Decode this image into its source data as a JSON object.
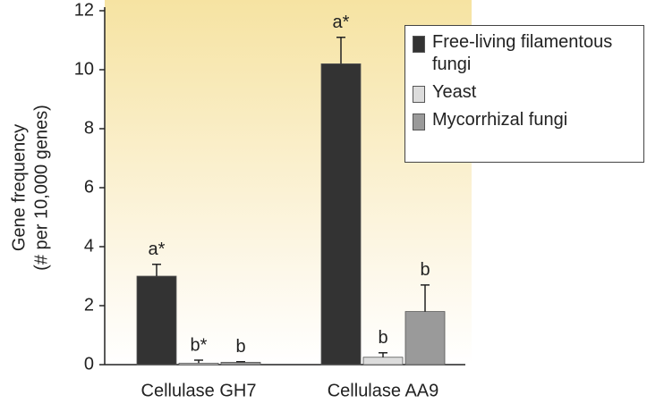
{
  "chart_data": {
    "type": "bar",
    "y_label": [
      "Gene frequency",
      "(# per 10,000 genes)"
    ],
    "categories": [
      "Cellulase GH7",
      "Cellulase AA9"
    ],
    "series": [
      {
        "name": "Free-living filamentous fungi",
        "color": "#333333",
        "values": [
          3.0,
          10.2
        ],
        "errors": [
          0.4,
          0.9
        ],
        "labels": [
          "a*",
          "a*"
        ]
      },
      {
        "name": "Yeast",
        "color": "#dcdcdc",
        "values": [
          0.05,
          0.25
        ],
        "errors": [
          0.1,
          0.15
        ],
        "labels": [
          "b*",
          "b"
        ]
      },
      {
        "name": "Mycorrhizal fungi",
        "color": "#9a9a9a",
        "values": [
          0.08,
          1.8
        ],
        "errors": [
          0.02,
          0.9
        ],
        "labels": [
          "b",
          "b"
        ]
      }
    ],
    "ylim": [
      0,
      12
    ],
    "yticks": [
      0,
      2,
      4,
      6,
      8,
      10,
      12
    ],
    "legend": "upper right"
  }
}
